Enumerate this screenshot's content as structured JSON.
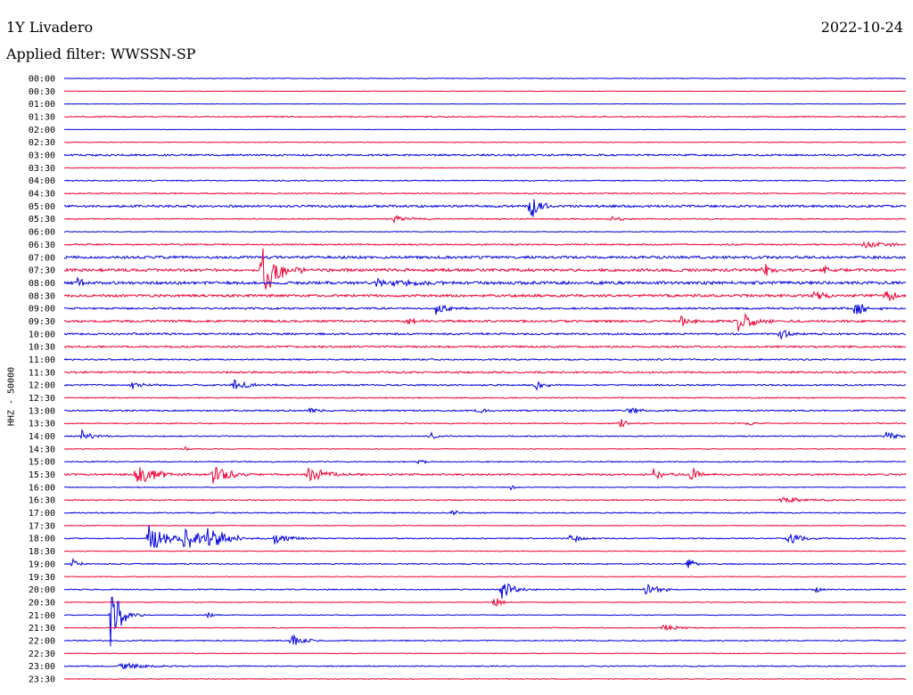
{
  "header": {
    "station": "1Y Livadero",
    "date": "2022-10-24",
    "filter": "Applied filter: WWSSN-SP"
  },
  "chart_data": {
    "type": "line",
    "title": "1Y Livadero",
    "ylabel": "HHZ - 50000",
    "trace_colors": [
      "#0000dd",
      "#ee0033"
    ],
    "time_labels": [
      "00:00",
      "00:30",
      "01:00",
      "01:30",
      "02:00",
      "02:30",
      "03:00",
      "03:30",
      "04:00",
      "04:30",
      "05:00",
      "05:30",
      "06:00",
      "06:30",
      "07:00",
      "07:30",
      "08:00",
      "08:30",
      "09:00",
      "09:30",
      "10:00",
      "10:30",
      "11:00",
      "11:30",
      "12:00",
      "12:30",
      "13:00",
      "13:30",
      "14:00",
      "14:30",
      "15:00",
      "15:30",
      "16:00",
      "16:30",
      "17:00",
      "17:30",
      "18:00",
      "18:30",
      "19:00",
      "19:30",
      "20:00",
      "20:30",
      "21:00",
      "21:30",
      "22:00",
      "22:30",
      "23:00",
      "23:30"
    ],
    "trace_noise": [
      0.4,
      0.3,
      0.2,
      0.6,
      0.2,
      0.4,
      1.0,
      0.4,
      0.6,
      0.6,
      1.2,
      0.6,
      0.4,
      0.8,
      1.4,
      1.6,
      1.6,
      1.4,
      1.0,
      1.2,
      1.0,
      1.0,
      0.8,
      1.0,
      0.8,
      0.6,
      0.8,
      0.6,
      0.6,
      0.4,
      0.6,
      1.0,
      0.4,
      0.6,
      0.6,
      0.4,
      0.6,
      0.4,
      0.6,
      0.4,
      0.6,
      0.4,
      0.4,
      0.4,
      0.6,
      0.4,
      0.6,
      0.4
    ],
    "events": [
      {
        "trace": 10,
        "t": 0.553,
        "amp": 22,
        "dur": 0.01
      },
      {
        "trace": 11,
        "t": 0.39,
        "amp": 4,
        "dur": 0.02
      },
      {
        "trace": 11,
        "t": 0.65,
        "amp": 4,
        "dur": 0.01
      },
      {
        "trace": 13,
        "t": 0.95,
        "amp": 4,
        "dur": 0.03
      },
      {
        "trace": 15,
        "t": 0.24,
        "amp": 10,
        "dur": 0.02
      },
      {
        "trace": 15,
        "t": 0.235,
        "amp": 28,
        "dur": 0.016
      },
      {
        "trace": 15,
        "t": 0.83,
        "amp": 16,
        "dur": 0.006
      },
      {
        "trace": 15,
        "t": 0.9,
        "amp": 10,
        "dur": 0.005
      },
      {
        "trace": 16,
        "t": 0.015,
        "amp": 8,
        "dur": 0.005
      },
      {
        "trace": 16,
        "t": 0.37,
        "amp": 5,
        "dur": 0.04
      },
      {
        "trace": 17,
        "t": 0.89,
        "amp": 8,
        "dur": 0.01
      },
      {
        "trace": 17,
        "t": 0.975,
        "amp": 10,
        "dur": 0.015
      },
      {
        "trace": 18,
        "t": 0.44,
        "amp": 10,
        "dur": 0.01
      },
      {
        "trace": 18,
        "t": 0.938,
        "amp": 12,
        "dur": 0.012
      },
      {
        "trace": 19,
        "t": 0.8,
        "amp": 12,
        "dur": 0.02
      },
      {
        "trace": 19,
        "t": 0.733,
        "amp": 7,
        "dur": 0.01
      },
      {
        "trace": 19,
        "t": 0.403,
        "amp": 4,
        "dur": 0.015
      },
      {
        "trace": 20,
        "t": 0.85,
        "amp": 10,
        "dur": 0.01
      },
      {
        "trace": 24,
        "t": 0.08,
        "amp": 6,
        "dur": 0.012
      },
      {
        "trace": 24,
        "t": 0.2,
        "amp": 7,
        "dur": 0.02
      },
      {
        "trace": 24,
        "t": 0.56,
        "amp": 6,
        "dur": 0.012
      },
      {
        "trace": 26,
        "t": 0.29,
        "amp": 4,
        "dur": 0.01
      },
      {
        "trace": 26,
        "t": 0.49,
        "amp": 4,
        "dur": 0.01
      },
      {
        "trace": 26,
        "t": 0.67,
        "amp": 6,
        "dur": 0.01
      },
      {
        "trace": 27,
        "t": 0.66,
        "amp": 10,
        "dur": 0.006
      },
      {
        "trace": 27,
        "t": 0.81,
        "amp": 5,
        "dur": 0.008
      },
      {
        "trace": 28,
        "t": 0.02,
        "amp": 7,
        "dur": 0.012
      },
      {
        "trace": 28,
        "t": 0.435,
        "amp": 5,
        "dur": 0.008
      },
      {
        "trace": 28,
        "t": 0.975,
        "amp": 6,
        "dur": 0.015
      },
      {
        "trace": 29,
        "t": 0.14,
        "amp": 4,
        "dur": 0.008
      },
      {
        "trace": 30,
        "t": 0.42,
        "amp": 5,
        "dur": 0.006
      },
      {
        "trace": 31,
        "t": 0.085,
        "amp": 16,
        "dur": 0.02
      },
      {
        "trace": 31,
        "t": 0.175,
        "amp": 12,
        "dur": 0.02
      },
      {
        "trace": 31,
        "t": 0.29,
        "amp": 10,
        "dur": 0.02
      },
      {
        "trace": 31,
        "t": 0.7,
        "amp": 8,
        "dur": 0.01
      },
      {
        "trace": 31,
        "t": 0.745,
        "amp": 16,
        "dur": 0.006
      },
      {
        "trace": 32,
        "t": 0.53,
        "amp": 4,
        "dur": 0.006
      },
      {
        "trace": 33,
        "t": 0.85,
        "amp": 4,
        "dur": 0.03
      },
      {
        "trace": 34,
        "t": 0.46,
        "amp": 5,
        "dur": 0.008
      },
      {
        "trace": 36,
        "t": 0.1,
        "amp": 16,
        "dur": 0.02
      },
      {
        "trace": 36,
        "t": 0.14,
        "amp": 16,
        "dur": 0.02
      },
      {
        "trace": 36,
        "t": 0.17,
        "amp": 14,
        "dur": 0.02
      },
      {
        "trace": 36,
        "t": 0.25,
        "amp": 8,
        "dur": 0.015
      },
      {
        "trace": 36,
        "t": 0.6,
        "amp": 6,
        "dur": 0.012
      },
      {
        "trace": 36,
        "t": 0.86,
        "amp": 8,
        "dur": 0.015
      },
      {
        "trace": 38,
        "t": 0.008,
        "amp": 8,
        "dur": 0.008
      },
      {
        "trace": 38,
        "t": 0.74,
        "amp": 10,
        "dur": 0.006
      },
      {
        "trace": 40,
        "t": 0.52,
        "amp": 12,
        "dur": 0.012
      },
      {
        "trace": 40,
        "t": 0.69,
        "amp": 8,
        "dur": 0.015
      },
      {
        "trace": 40,
        "t": 0.89,
        "amp": 6,
        "dur": 0.006
      },
      {
        "trace": 41,
        "t": 0.51,
        "amp": 8,
        "dur": 0.008
      },
      {
        "trace": 42,
        "t": 0.055,
        "amp": 44,
        "dur": 0.01
      },
      {
        "trace": 42,
        "t": 0.17,
        "amp": 5,
        "dur": 0.006
      },
      {
        "trace": 43,
        "t": 0.71,
        "amp": 4,
        "dur": 0.02
      },
      {
        "trace": 44,
        "t": 0.27,
        "amp": 7,
        "dur": 0.015
      },
      {
        "trace": 46,
        "t": 0.065,
        "amp": 4,
        "dur": 0.03
      }
    ]
  }
}
